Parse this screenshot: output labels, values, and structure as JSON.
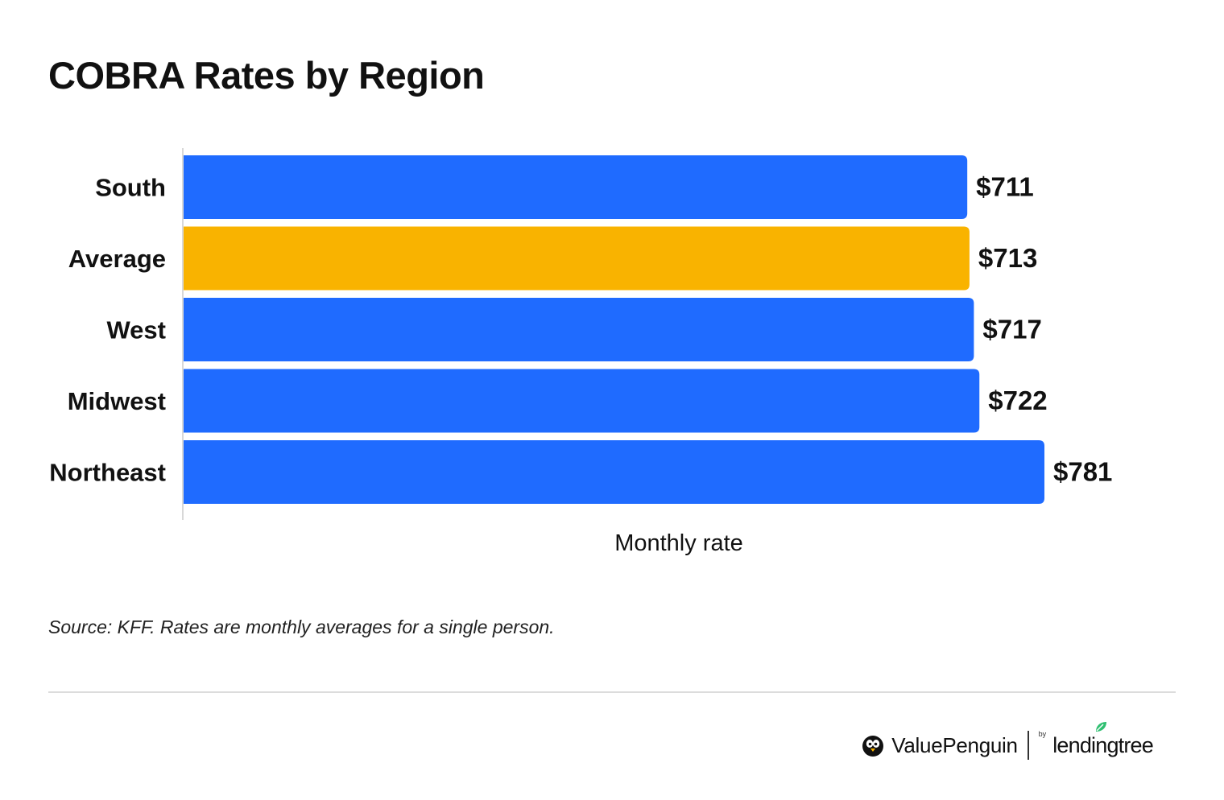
{
  "title": "COBRA Rates by Region",
  "source": "Source: KFF. Rates are monthly averages for a single person.",
  "brand": {
    "name": "ValuePenguin",
    "by": "by",
    "partner": "lendingtree",
    "penguin_icon": "penguin-icon",
    "leaf_icon": "leaf-icon",
    "partner_color": "#2fbf71"
  },
  "colors": {
    "bar": "#1f6bff",
    "highlight": "#f9b300",
    "axis": "#cccccc"
  },
  "chart_data": {
    "type": "bar",
    "orientation": "horizontal",
    "title": "COBRA Rates by Region",
    "xlabel": "Monthly rate",
    "ylabel": "",
    "categories": [
      "South",
      "Average",
      "West",
      "Midwest",
      "Northeast"
    ],
    "values": [
      711,
      713,
      717,
      722,
      781
    ],
    "value_labels": [
      "$711",
      "$713",
      "$717",
      "$722",
      "$781"
    ],
    "highlight_index": 1,
    "xlim": [
      0,
      781
    ],
    "grid": false,
    "legend": "none"
  }
}
